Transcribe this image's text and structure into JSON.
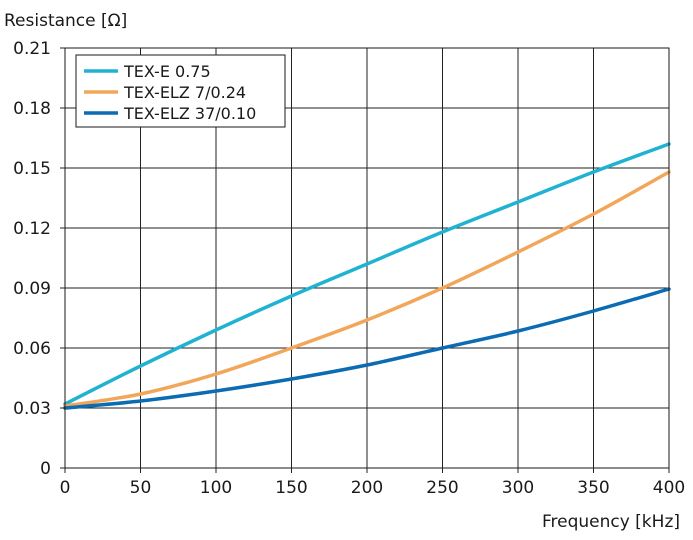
{
  "chart_data": {
    "type": "line",
    "title": "",
    "xlabel": "Frequency [kHz]",
    "ylabel": "Resistance [Ω]",
    "xlim": [
      0,
      400
    ],
    "ylim": [
      0,
      0.21
    ],
    "xticks": [
      "0",
      "50",
      "100",
      "150",
      "200",
      "250",
      "300",
      "350",
      "400"
    ],
    "yticks": [
      "0",
      "0.03",
      "0.06",
      "0.09",
      "0.12",
      "0.15",
      "0.18",
      "0.21"
    ],
    "grid": true,
    "legend_position": "top-left",
    "x": [
      0,
      50,
      100,
      150,
      200,
      250,
      300,
      350,
      400
    ],
    "series": [
      {
        "name": "TEX-E 0.75",
        "color": "#1fb3d1",
        "values": [
          0.032,
          0.051,
          0.069,
          0.086,
          0.102,
          0.118,
          0.133,
          0.148,
          0.162
        ]
      },
      {
        "name": "TEX-ELZ 7/0.24",
        "color": "#f2a65a",
        "values": [
          0.031,
          0.037,
          0.047,
          0.06,
          0.074,
          0.09,
          0.108,
          0.127,
          0.148
        ]
      },
      {
        "name": "TEX-ELZ 37/0.10",
        "color": "#0b6bb3",
        "values": [
          0.03,
          0.0335,
          0.0385,
          0.0445,
          0.0515,
          0.06,
          0.0685,
          0.0785,
          0.0895
        ]
      }
    ]
  }
}
